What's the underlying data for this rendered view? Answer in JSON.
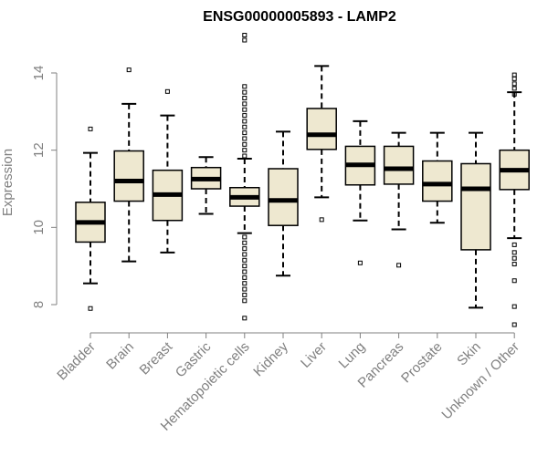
{
  "chart_data": {
    "type": "boxplot",
    "title": "ENSG00000005893 - LAMP2",
    "ylabel": "Expression",
    "xlabel": "",
    "ylim": [
      7.3,
      15.0
    ],
    "yticks": [
      8,
      10,
      12,
      14
    ],
    "box_fill": "#EEE8D0",
    "box_stroke": "#000000",
    "axis_color": "#808080",
    "categories": [
      "Bladder",
      "Brain",
      "Breast",
      "Gastric",
      "Hematopoietic cells",
      "Kidney",
      "Liver",
      "Lung",
      "Pancreas",
      "Prostate",
      "Skin",
      "Unknown / Other"
    ],
    "boxes": [
      {
        "label": "Bladder",
        "whisker_low": 8.55,
        "q1": 9.62,
        "median": 10.13,
        "q3": 10.65,
        "whisker_high": 11.93,
        "outliers": [
          12.55,
          7.9
        ]
      },
      {
        "label": "Brain",
        "whisker_low": 9.12,
        "q1": 10.68,
        "median": 11.2,
        "q3": 11.98,
        "whisker_high": 13.2,
        "outliers": [
          14.08
        ]
      },
      {
        "label": "Breast",
        "whisker_low": 9.35,
        "q1": 10.18,
        "median": 10.85,
        "q3": 11.48,
        "whisker_high": 12.9,
        "outliers": [
          13.52
        ]
      },
      {
        "label": "Gastric",
        "whisker_low": 10.35,
        "q1": 11.0,
        "median": 11.25,
        "q3": 11.55,
        "whisker_high": 11.82,
        "outliers": []
      },
      {
        "label": "Hematopoietic cells",
        "whisker_low": 9.85,
        "q1": 10.55,
        "median": 10.78,
        "q3": 11.03,
        "whisker_high": 11.78,
        "outliers": [
          14.98,
          14.85,
          13.65,
          13.5,
          13.35,
          13.2,
          13.05,
          12.9,
          12.75,
          12.6,
          12.45,
          12.3,
          12.15,
          12.0,
          11.85,
          9.75,
          9.6,
          9.45,
          9.3,
          9.15,
          9.0,
          8.85,
          8.7,
          8.55,
          8.4,
          8.25,
          8.1,
          7.65
        ]
      },
      {
        "label": "Kidney",
        "whisker_low": 8.75,
        "q1": 10.05,
        "median": 10.7,
        "q3": 11.52,
        "whisker_high": 12.48,
        "outliers": []
      },
      {
        "label": "Liver",
        "whisker_low": 10.78,
        "q1": 12.02,
        "median": 12.4,
        "q3": 13.08,
        "whisker_high": 14.18,
        "outliers": [
          10.2
        ]
      },
      {
        "label": "Lung",
        "whisker_low": 10.18,
        "q1": 11.1,
        "median": 11.62,
        "q3": 12.1,
        "whisker_high": 12.75,
        "outliers": [
          9.08
        ]
      },
      {
        "label": "Pancreas",
        "whisker_low": 9.95,
        "q1": 11.12,
        "median": 11.52,
        "q3": 12.1,
        "whisker_high": 12.45,
        "outliers": [
          9.02
        ]
      },
      {
        "label": "Prostate",
        "whisker_low": 10.12,
        "q1": 10.68,
        "median": 11.12,
        "q3": 11.72,
        "whisker_high": 12.45,
        "outliers": []
      },
      {
        "label": "Skin",
        "whisker_low": 7.92,
        "q1": 9.42,
        "median": 11.0,
        "q3": 11.65,
        "whisker_high": 12.45,
        "outliers": []
      },
      {
        "label": "Unknown / Other",
        "whisker_low": 9.72,
        "q1": 10.98,
        "median": 11.48,
        "q3": 12.0,
        "whisker_high": 13.5,
        "outliers": [
          13.95,
          13.85,
          13.72,
          13.6,
          13.45,
          9.55,
          9.35,
          9.2,
          9.05,
          8.62,
          7.95,
          7.48
        ]
      }
    ]
  }
}
